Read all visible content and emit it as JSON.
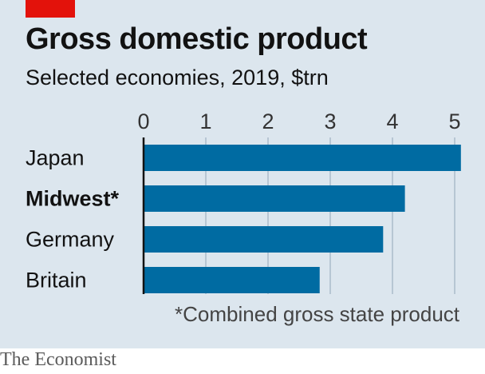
{
  "header": {
    "title": "Gross domestic product",
    "subtitle": "Selected economies, 2019, $trn"
  },
  "footnote": "*Combined gross state product",
  "source": "The Economist",
  "colors": {
    "background": "#dce6ee",
    "bar": "#006ba2",
    "accent": "#e3120b",
    "grid": "#b7c6d3"
  },
  "chart_data": {
    "type": "bar",
    "orientation": "horizontal",
    "title": "Gross domestic product",
    "subtitle": "Selected economies, 2019, $trn",
    "categories": [
      "Japan",
      "Midwest*",
      "Germany",
      "Britain"
    ],
    "highlighted_category": "Midwest*",
    "values": [
      5.1,
      4.2,
      3.85,
      2.83
    ],
    "xlim": [
      0,
      5
    ],
    "xticks": [
      "0",
      "1",
      "2",
      "3",
      "4",
      "5"
    ],
    "xaxis_position": "top",
    "grid": true,
    "xlabel": "",
    "ylabel": ""
  }
}
